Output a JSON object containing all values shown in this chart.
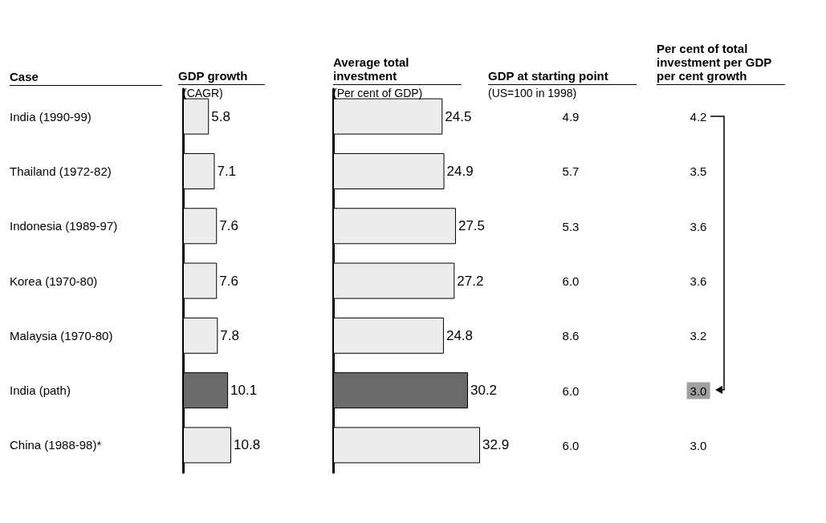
{
  "chart_data": [
    {
      "type": "bar",
      "orientation": "horizontal",
      "title": "GDP growth",
      "subtitle": "(CAGR)",
      "ylabel": "Case",
      "categories": [
        "India (1990-99)",
        "Thailand (1972-82)",
        "Indonesia (1989-97)",
        "Korea (1970-80)",
        "Malaysia (1970-80)",
        "India (path)",
        "China (1988-98)*"
      ],
      "values": [
        5.8,
        7.1,
        7.6,
        7.6,
        7.8,
        10.1,
        10.8
      ],
      "colors": [
        "#ececec",
        "#ececec",
        "#ececec",
        "#ececec",
        "#ececec",
        "#6a6a6a",
        "#ececec"
      ],
      "data_labels": true,
      "tick_labels": "y"
    },
    {
      "type": "bar",
      "orientation": "horizontal",
      "title": "Average total investment",
      "subtitle": "(Per cent of GDP)",
      "values": [
        24.5,
        24.9,
        27.5,
        27.2,
        24.8,
        30.2,
        32.9
      ],
      "colors": [
        "#ececec",
        "#ececec",
        "#ececec",
        "#ececec",
        "#ececec",
        "#6a6a6a",
        "#ececec"
      ],
      "data_labels": true,
      "tick_labels": false
    },
    {
      "type": "other",
      "title": "GDP at starting point",
      "subtitle": "(US=100 in 1998)",
      "values": [
        4.9,
        5.7,
        5.3,
        6.0,
        8.6,
        6.0,
        6.0
      ],
      "value_labels": [
        "4.9",
        "5.7",
        "5.3",
        "6.0",
        "8.6",
        "6.0",
        "6.0"
      ]
    },
    {
      "type": "other",
      "title": "Per cent of total investment per GDP per cent growth",
      "values": [
        4.2,
        3.5,
        3.6,
        3.6,
        3.2,
        3.0,
        3.0
      ],
      "value_labels": [
        "4.2",
        "3.5",
        "3.6",
        "3.6",
        "3.2",
        "3.0",
        "3.0"
      ],
      "colors": [
        null,
        null,
        null,
        null,
        null,
        "#a0a0a0",
        null
      ]
    }
  ]
}
